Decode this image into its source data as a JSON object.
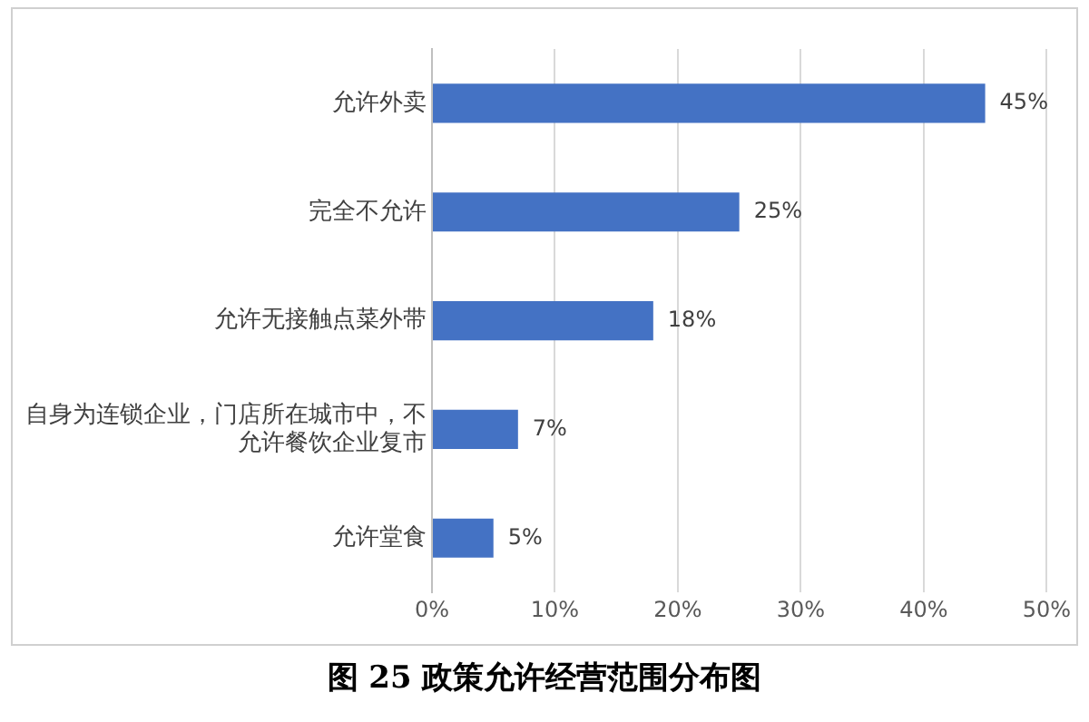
{
  "chart_data": {
    "type": "bar",
    "orientation": "horizontal",
    "title": "图 25 政策允许经营范围分布图",
    "categories": [
      "允许外卖",
      "完全不允许",
      "允许无接触点菜外带",
      "自身为连锁企业，门店所在城市中，不允许餐饮企业复市",
      "允许堂食"
    ],
    "values": [
      45,
      25,
      18,
      7,
      5
    ],
    "value_labels": [
      "45%",
      "25%",
      "18%",
      "7%",
      "5%"
    ],
    "color": "#4472c4",
    "xlim": [
      0,
      50
    ],
    "xticks": [
      {
        "value": 0,
        "label": "0%"
      },
      {
        "value": 10,
        "label": "10%"
      },
      {
        "value": 20,
        "label": "20%"
      },
      {
        "value": 30,
        "label": "30%"
      },
      {
        "value": 40,
        "label": "40%"
      },
      {
        "value": 50,
        "label": "50%"
      }
    ],
    "grid": "x",
    "legend": false
  }
}
